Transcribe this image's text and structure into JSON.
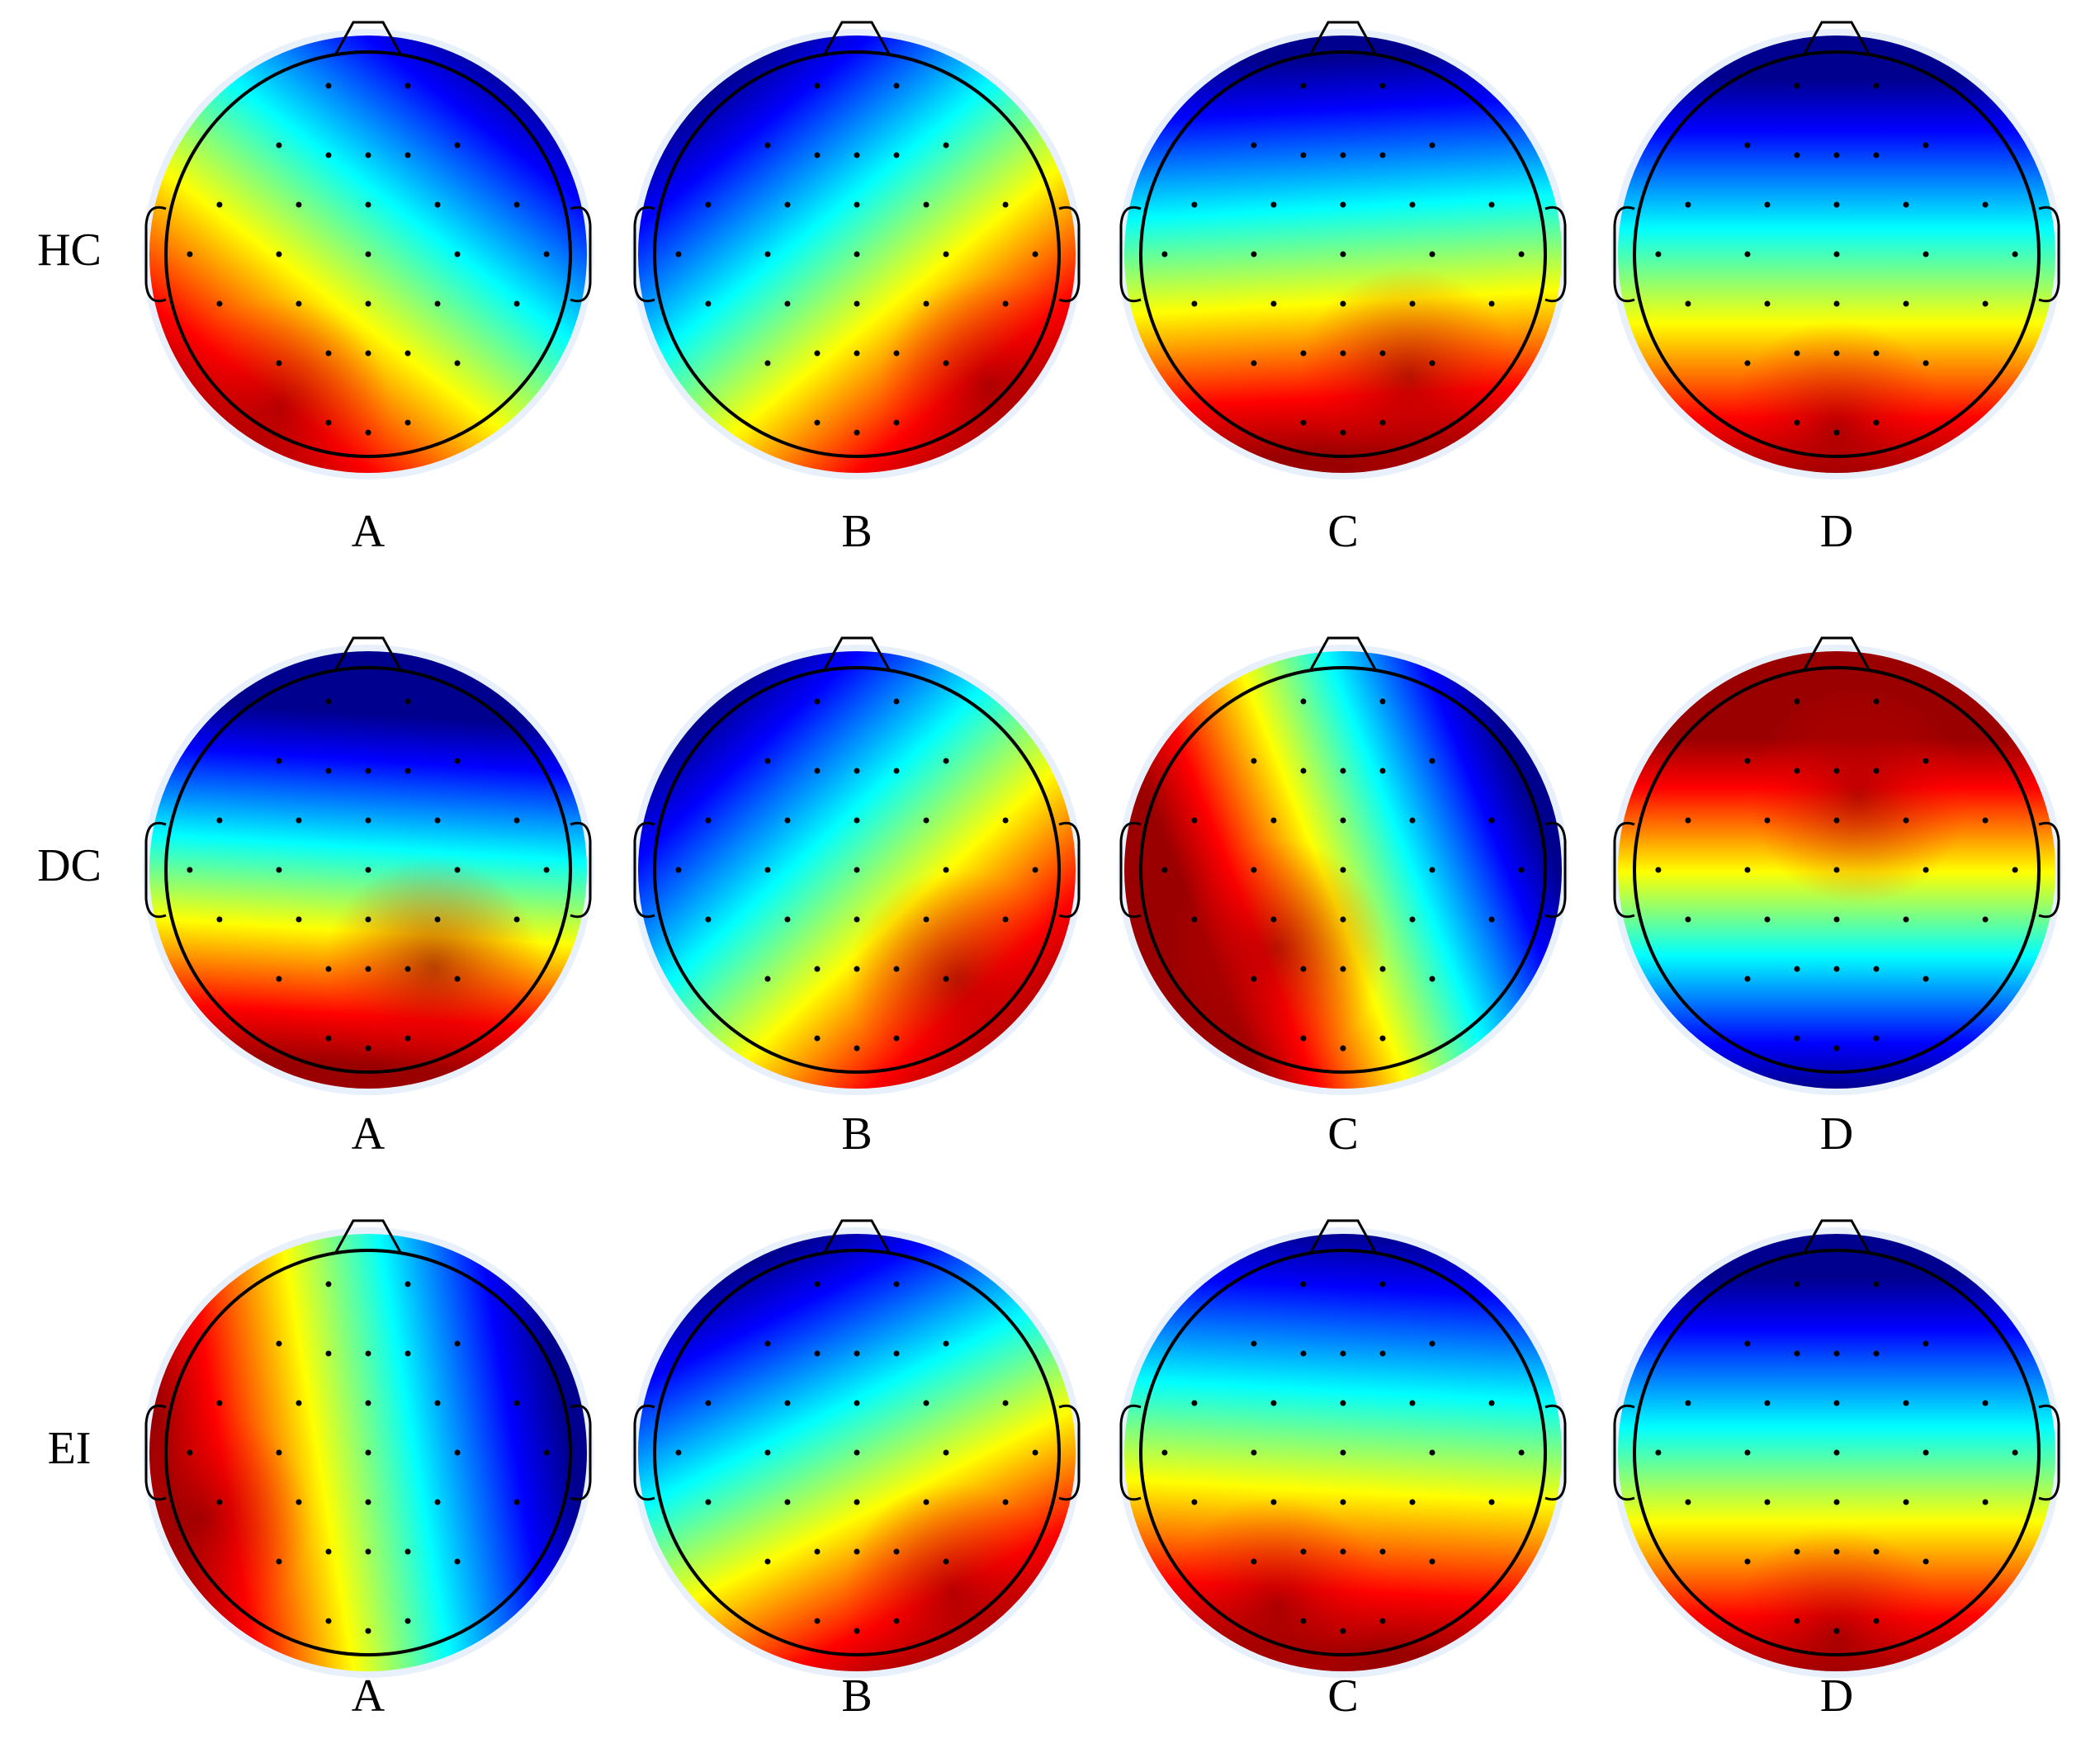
{
  "rows": [
    {
      "label": "HC",
      "panels": [
        "A",
        "B",
        "C",
        "D"
      ]
    },
    {
      "label": "DC",
      "panels": [
        "A",
        "B",
        "C",
        "D"
      ]
    },
    {
      "label": "EI",
      "panels": [
        "A",
        "B",
        "C",
        "D"
      ]
    }
  ]
}
